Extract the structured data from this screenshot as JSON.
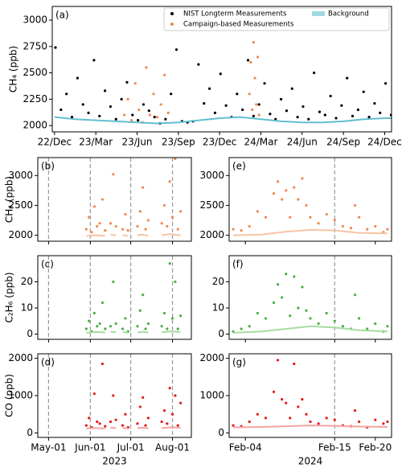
{
  "chart_data": [
    {
      "type": "scatter",
      "panel": "(a)",
      "ylabel": "CH₄ (ppb)",
      "xlim": [
        -5,
        735
      ],
      "ylim": [
        1940,
        3130
      ],
      "xticks": [
        {
          "value": 0,
          "label": "22/Dec"
        },
        {
          "value": 90,
          "label": "23/Mar"
        },
        {
          "value": 180,
          "label": "23/Jun"
        },
        {
          "value": 270,
          "label": "23/Sep"
        },
        {
          "value": 360,
          "label": "23/Dec"
        },
        {
          "value": 450,
          "label": "24/Mar"
        },
        {
          "value": 540,
          "label": "24/Jun"
        },
        {
          "value": 630,
          "label": "24/Sep"
        },
        {
          "value": 720,
          "label": "24/Dec"
        }
      ],
      "yticks": [
        2000,
        2250,
        2500,
        2750,
        3000
      ],
      "series": [
        {
          "name": "NIST Longterm Measurements",
          "color": "#000000",
          "mode": "points",
          "x": [
            2,
            14,
            26,
            38,
            50,
            62,
            74,
            86,
            98,
            110,
            122,
            134,
            146,
            158,
            170,
            182,
            194,
            206,
            218,
            230,
            242,
            254,
            266,
            278,
            290,
            302,
            314,
            326,
            338,
            350,
            362,
            374,
            386,
            398,
            410,
            422,
            434,
            446,
            458,
            470,
            482,
            494,
            506,
            518,
            530,
            542,
            554,
            566,
            578,
            590,
            602,
            614,
            626,
            638,
            650,
            662,
            674,
            686,
            698,
            710,
            722,
            734
          ],
          "values": [
            2740,
            2150,
            2300,
            2080,
            2450,
            2200,
            2120,
            2620,
            2090,
            2330,
            2180,
            2060,
            2250,
            2410,
            2100,
            2050,
            2200,
            2140,
            2080,
            2020,
            2060,
            2300,
            2720,
            2040,
            2030,
            2040,
            2580,
            2210,
            2350,
            2120,
            2490,
            2190,
            2080,
            2300,
            2150,
            2620,
            2090,
            2200,
            2400,
            2110,
            2060,
            2250,
            2140,
            2350,
            2080,
            2180,
            2060,
            2500,
            2130,
            2100,
            2280,
            2070,
            2190,
            2450,
            2090,
            2150,
            2320,
            2080,
            2210,
            2120,
            2400,
            2100
          ]
        },
        {
          "name": "Campaign-based Measurements",
          "color": "#f08a4b",
          "mode": "points",
          "x": [
            152,
            160,
            168,
            176,
            184,
            192,
            200,
            208,
            216,
            224,
            232,
            240,
            248,
            425,
            428,
            431,
            434,
            437,
            440,
            443,
            446
          ],
          "values": [
            2100,
            2250,
            2050,
            2400,
            2150,
            2030,
            2550,
            2100,
            2300,
            2080,
            2200,
            2480,
            2120,
            2300,
            2600,
            2150,
            2790,
            2450,
            2200,
            2650,
            2100
          ]
        },
        {
          "name": "Background",
          "color": "#5fbfcf",
          "mode": "line",
          "x": [
            0,
            45,
            90,
            135,
            180,
            225,
            270,
            315,
            360,
            405,
            450,
            495,
            540,
            585,
            630,
            675,
            720,
            735
          ],
          "values": [
            2080,
            2060,
            2050,
            2040,
            2030,
            2020,
            2030,
            2050,
            2070,
            2080,
            2060,
            2040,
            2030,
            2030,
            2040,
            2060,
            2070,
            2070
          ]
        }
      ]
    },
    {
      "type": "scatter",
      "panel": "(b)",
      "ylabel": "CH₄ (ppb)",
      "xlim": [
        -8,
        106
      ],
      "ylim": [
        1900,
        3300
      ],
      "xticks": [
        0,
        31,
        61,
        92
      ],
      "yticks": [
        2000,
        2500,
        3000
      ],
      "vlines": [
        0,
        31,
        61,
        92
      ],
      "series": [
        {
          "color": "#f4874b",
          "mode": "points",
          "x": [
            28,
            30,
            32,
            34,
            36,
            38,
            40,
            42,
            46,
            48,
            50,
            55,
            57,
            59,
            66,
            68,
            70,
            72,
            74,
            84,
            86,
            88,
            90,
            92,
            94,
            96,
            98
          ],
          "values": [
            2100,
            2300,
            2050,
            2480,
            2150,
            2200,
            2600,
            2080,
            2200,
            3020,
            2150,
            2100,
            2350,
            2080,
            2150,
            2400,
            2800,
            2100,
            2250,
            2200,
            2500,
            2150,
            2900,
            2300,
            3280,
            2100,
            2400
          ]
        },
        {
          "color": "#f7c4a5",
          "mode": "line",
          "x": [
            28,
            35,
            42,
            44,
            46,
            50,
            53,
            55,
            59,
            62,
            66,
            70,
            74,
            79,
            84,
            90,
            98
          ],
          "values": [
            1990,
            2000,
            1990,
            null,
            2010,
            2000,
            null,
            2000,
            1990,
            null,
            2000,
            2010,
            1990,
            null,
            2000,
            2020,
            2000
          ]
        }
      ]
    },
    {
      "type": "scatter",
      "panel": "(c)",
      "ylabel": "C₂H₆ (ppb)",
      "xlim": [
        -8,
        106
      ],
      "ylim": [
        -2,
        30
      ],
      "xticks": [
        0,
        31,
        61,
        92
      ],
      "yticks": [
        0,
        10,
        20
      ],
      "vlines": [
        0,
        31,
        61,
        92
      ],
      "series": [
        {
          "color": "#4aaf48",
          "mode": "points",
          "x": [
            28,
            30,
            32,
            34,
            36,
            38,
            40,
            42,
            46,
            48,
            50,
            55,
            57,
            59,
            66,
            68,
            70,
            72,
            74,
            84,
            86,
            88,
            90,
            92,
            94,
            96,
            98
          ],
          "values": [
            2,
            5,
            1,
            8,
            3,
            4,
            12,
            2,
            3,
            20,
            4,
            2,
            6,
            1,
            3,
            9,
            15,
            2,
            4,
            3,
            8,
            2,
            27,
            6,
            20,
            2,
            7
          ]
        },
        {
          "color": "#a6dba0",
          "mode": "line",
          "x": [
            28,
            35,
            42,
            44,
            46,
            50,
            53,
            55,
            59,
            62,
            66,
            70,
            74,
            79,
            84,
            90,
            98
          ],
          "values": [
            0.5,
            0.8,
            0.6,
            null,
            0.9,
            0.7,
            null,
            0.8,
            0.5,
            null,
            0.6,
            0.9,
            0.6,
            null,
            0.7,
            1.0,
            0.8
          ]
        }
      ]
    },
    {
      "type": "scatter",
      "panel": "(d)",
      "ylabel": "CO (ppb)",
      "xlabel": "2023",
      "xlim": [
        -8,
        106
      ],
      "ylim": [
        -120,
        2120
      ],
      "xticks": [
        {
          "value": 0,
          "label": "May-01"
        },
        {
          "value": 31,
          "label": "Jun-01"
        },
        {
          "value": 61,
          "label": "Jul-01"
        },
        {
          "value": 92,
          "label": "Aug-01"
        }
      ],
      "yticks": [
        0,
        1000,
        2000
      ],
      "vlines": [
        0,
        31,
        61,
        92
      ],
      "series": [
        {
          "color": "#e41a1c",
          "mode": "points",
          "x": [
            28,
            30,
            32,
            34,
            36,
            38,
            40,
            42,
            46,
            48,
            50,
            55,
            57,
            59,
            66,
            68,
            70,
            72,
            74,
            84,
            86,
            88,
            90,
            92,
            94,
            96,
            98
          ],
          "values": [
            200,
            400,
            150,
            1050,
            300,
            250,
            1850,
            180,
            300,
            1000,
            350,
            200,
            500,
            150,
            250,
            700,
            950,
            200,
            400,
            300,
            600,
            250,
            1200,
            500,
            1000,
            200,
            800
          ]
        },
        {
          "color": "#f4a3a3",
          "mode": "line",
          "x": [
            28,
            35,
            42,
            44,
            46,
            50,
            53,
            55,
            59,
            62,
            66,
            70,
            74,
            79,
            84,
            90,
            98
          ],
          "values": [
            120,
            130,
            120,
            null,
            140,
            130,
            null,
            130,
            120,
            null,
            130,
            140,
            120,
            null,
            130,
            150,
            140
          ]
        }
      ]
    },
    {
      "type": "scatter",
      "panel": "(e)",
      "xlim": [
        -2,
        18
      ],
      "ylim": [
        1900,
        3300
      ],
      "xticks": [
        0,
        11,
        16
      ],
      "yticks": [
        2000,
        2500,
        3000
      ],
      "vlines": [
        11
      ],
      "series": [
        {
          "color": "#f4874b",
          "mode": "points",
          "x": [
            -1.5,
            -0.5,
            0.5,
            1.5,
            2.5,
            3.5,
            4,
            4.5,
            5,
            5.5,
            6,
            6.5,
            7,
            7.5,
            8,
            9,
            10,
            11,
            12,
            13,
            13.5,
            14,
            15,
            16,
            17,
            17.5
          ],
          "values": [
            2100,
            2080,
            2150,
            2400,
            2300,
            2700,
            2900,
            2600,
            2750,
            2300,
            2800,
            2600,
            2950,
            2500,
            2300,
            2200,
            2350,
            2250,
            2150,
            2120,
            2500,
            2300,
            2100,
            2150,
            2050,
            2100
          ]
        },
        {
          "color": "#f7c4a5",
          "mode": "line",
          "x": [
            -1.5,
            2,
            5,
            8,
            11,
            14,
            17.5
          ],
          "values": [
            2000,
            2010,
            2060,
            2090,
            2080,
            2040,
            2030
          ]
        }
      ]
    },
    {
      "type": "scatter",
      "panel": "(f)",
      "xlim": [
        -2,
        18
      ],
      "ylim": [
        -2,
        30
      ],
      "xticks": [
        0,
        11,
        16
      ],
      "yticks": [
        0,
        10,
        20
      ],
      "vlines": [
        11
      ],
      "series": [
        {
          "color": "#4aaf48",
          "mode": "points",
          "x": [
            -1.5,
            -0.5,
            0.5,
            1.5,
            2.5,
            3.5,
            4,
            4.5,
            5,
            5.5,
            6,
            6.5,
            7,
            7.5,
            8,
            9,
            10,
            11,
            12,
            13,
            13.5,
            14,
            15,
            16,
            17,
            17.5
          ],
          "values": [
            1,
            2,
            3,
            8,
            6,
            12,
            19,
            14,
            23,
            7,
            22,
            10,
            18,
            9,
            6,
            4,
            8,
            5,
            3,
            2,
            15,
            6,
            2,
            4,
            1,
            3
          ]
        },
        {
          "color": "#a6dba0",
          "mode": "line",
          "x": [
            -1.5,
            2,
            5,
            8,
            11,
            14,
            17.5
          ],
          "values": [
            0.5,
            1,
            2,
            3,
            2.5,
            1.5,
            1
          ]
        }
      ]
    },
    {
      "type": "scatter",
      "panel": "(g)",
      "xlabel": "2024",
      "xlim": [
        -2,
        18
      ],
      "ylim": [
        -120,
        2120
      ],
      "xticks": [
        {
          "value": 0,
          "label": "Feb-04"
        },
        {
          "value": 11,
          "label": "Feb-15"
        },
        {
          "value": 16,
          "label": "Feb-20"
        }
      ],
      "yticks": [
        0,
        1000,
        2000
      ],
      "vlines": [
        11
      ],
      "series": [
        {
          "color": "#e41a1c",
          "mode": "points",
          "x": [
            -1.5,
            -0.5,
            0.5,
            1.5,
            2.5,
            3.5,
            4,
            4.5,
            5,
            5.5,
            6,
            6.5,
            7,
            7.5,
            8,
            9,
            10,
            11,
            12,
            13,
            13.5,
            14,
            15,
            16,
            17,
            17.5
          ],
          "values": [
            200,
            180,
            300,
            500,
            400,
            1100,
            1950,
            900,
            800,
            400,
            1850,
            700,
            900,
            500,
            300,
            250,
            400,
            350,
            200,
            180,
            600,
            300,
            150,
            350,
            250,
            300
          ]
        },
        {
          "color": "#f4a3a3",
          "mode": "line",
          "x": [
            -1.5,
            2,
            5,
            8,
            11,
            14,
            17.5
          ],
          "values": [
            150,
            160,
            180,
            200,
            190,
            170,
            160
          ]
        }
      ]
    }
  ]
}
